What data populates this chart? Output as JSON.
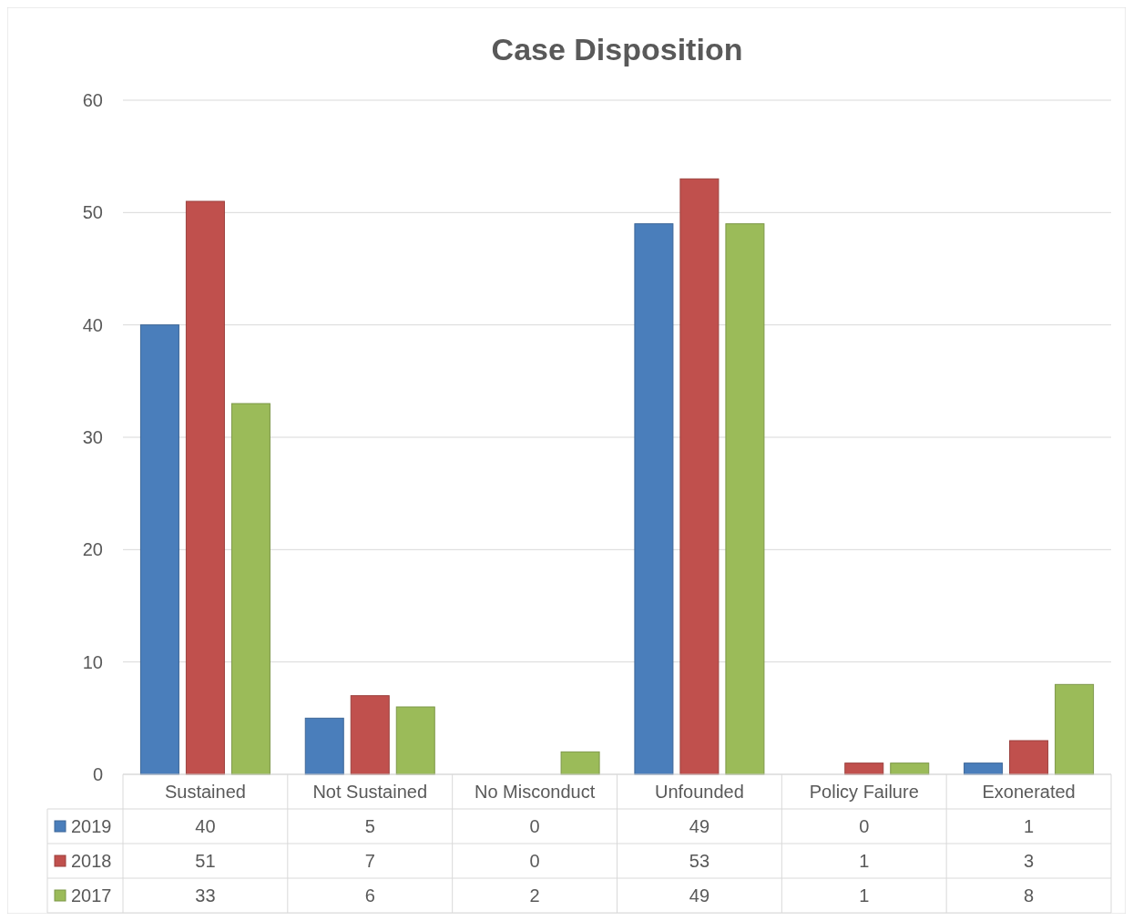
{
  "chart_data": {
    "type": "bar",
    "title": "Case Disposition",
    "categories": [
      "Sustained",
      "Not Sustained",
      "No Misconduct",
      "Unfounded",
      "Policy Failure",
      "Exonerated"
    ],
    "series": [
      {
        "name": "2019",
        "color": "#4a7ebb",
        "values": [
          40,
          5,
          0,
          49,
          0,
          1
        ]
      },
      {
        "name": "2018",
        "color": "#c0504d",
        "values": [
          51,
          7,
          0,
          53,
          1,
          3
        ]
      },
      {
        "name": "2017",
        "color": "#9bbb59",
        "values": [
          33,
          6,
          2,
          49,
          1,
          8
        ]
      }
    ],
    "ylim": [
      0,
      60
    ],
    "yticks": [
      0,
      10,
      20,
      30,
      40,
      50,
      60
    ],
    "grid": "y",
    "legend": "bottom",
    "data_labels": true
  }
}
